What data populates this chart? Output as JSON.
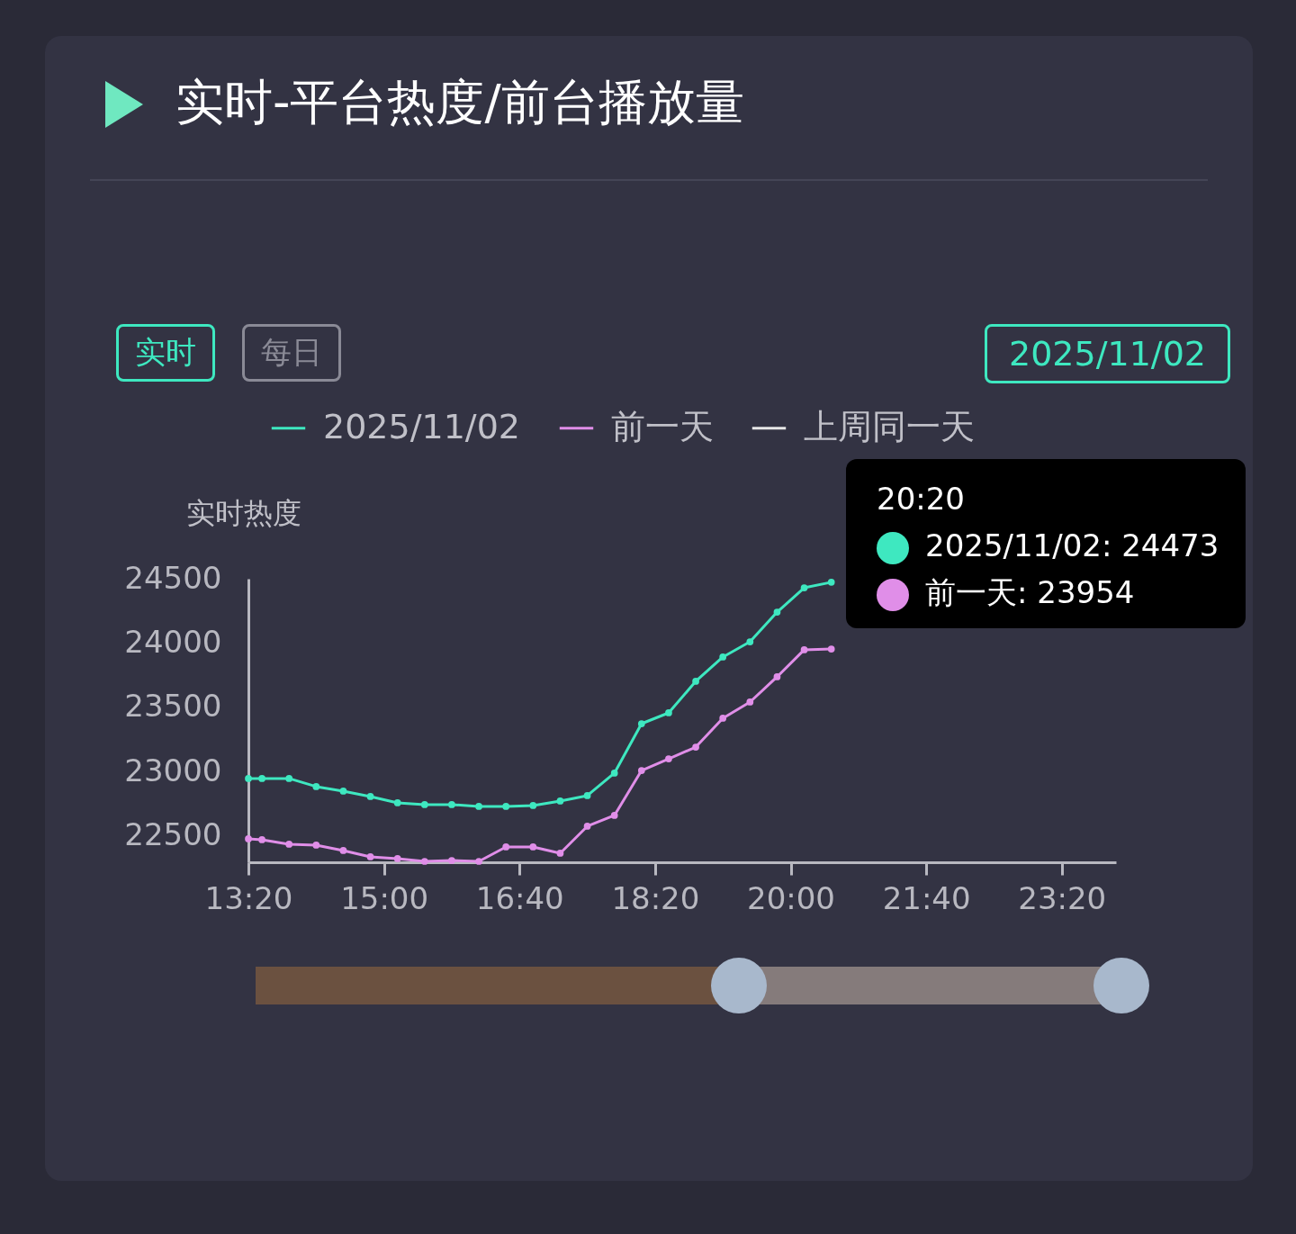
{
  "chart_data": {
    "type": "line",
    "title": "实时-平台热度/前台播放量",
    "ylabel": "实时热度",
    "legend": "top",
    "marker": "circle",
    "grid": false,
    "annotations": [
      "实时",
      "每日",
      "2025/11/02",
      "20:20",
      "2025/11/02: 24473",
      "前一天: 23954"
    ],
    "x": [
      13.3333,
      13.5,
      13.8333,
      14.1667,
      14.5,
      14.8333,
      15.1667,
      15.5,
      15.8333,
      16.1667,
      16.5,
      16.8333,
      17.1667,
      17.5,
      17.8333,
      18.1667,
      18.5,
      18.8333,
      19.1667,
      19.5,
      19.8333,
      20.1667,
      20.5
    ],
    "xlim": [
      13.3333,
      24
    ],
    "xticks": [
      {
        "value": 13.3333,
        "label": "13:20"
      },
      {
        "value": 15,
        "label": "15:00"
      },
      {
        "value": 16.6667,
        "label": "16:40"
      },
      {
        "value": 18.3333,
        "label": "18:20"
      },
      {
        "value": 20,
        "label": "20:00"
      },
      {
        "value": 21.6667,
        "label": "21:40"
      },
      {
        "value": 23.3333,
        "label": "23:20"
      }
    ],
    "ylim": [
      22297,
      24500
    ],
    "yticks": [
      22500,
      23000,
      23500,
      24000,
      24500
    ],
    "series": [
      {
        "name": "2025/11/02",
        "color": "#3ee8c0",
        "values": [
          22948,
          22948,
          22948,
          22885,
          22850,
          22808,
          22759,
          22745,
          22745,
          22731,
          22731,
          22738,
          22773,
          22815,
          22990,
          23374,
          23458,
          23703,
          23892,
          24010,
          24241,
          24430,
          24473
        ]
      },
      {
        "name": "前一天",
        "color": "#e08ee8",
        "values": [
          22479,
          22472,
          22437,
          22430,
          22388,
          22339,
          22325,
          22304,
          22311,
          22304,
          22416,
          22416,
          22367,
          22577,
          22661,
          23010,
          23101,
          23192,
          23416,
          23542,
          23738,
          23948,
          23954
        ]
      },
      {
        "name": "上周同一天",
        "color": "#e6e6e6",
        "values": [
          null,
          null,
          null,
          null,
          null,
          null,
          null,
          null,
          null,
          null,
          null,
          null,
          null,
          null,
          null,
          null,
          null,
          null,
          null,
          null,
          null,
          null,
          null
        ]
      }
    ]
  }
}
